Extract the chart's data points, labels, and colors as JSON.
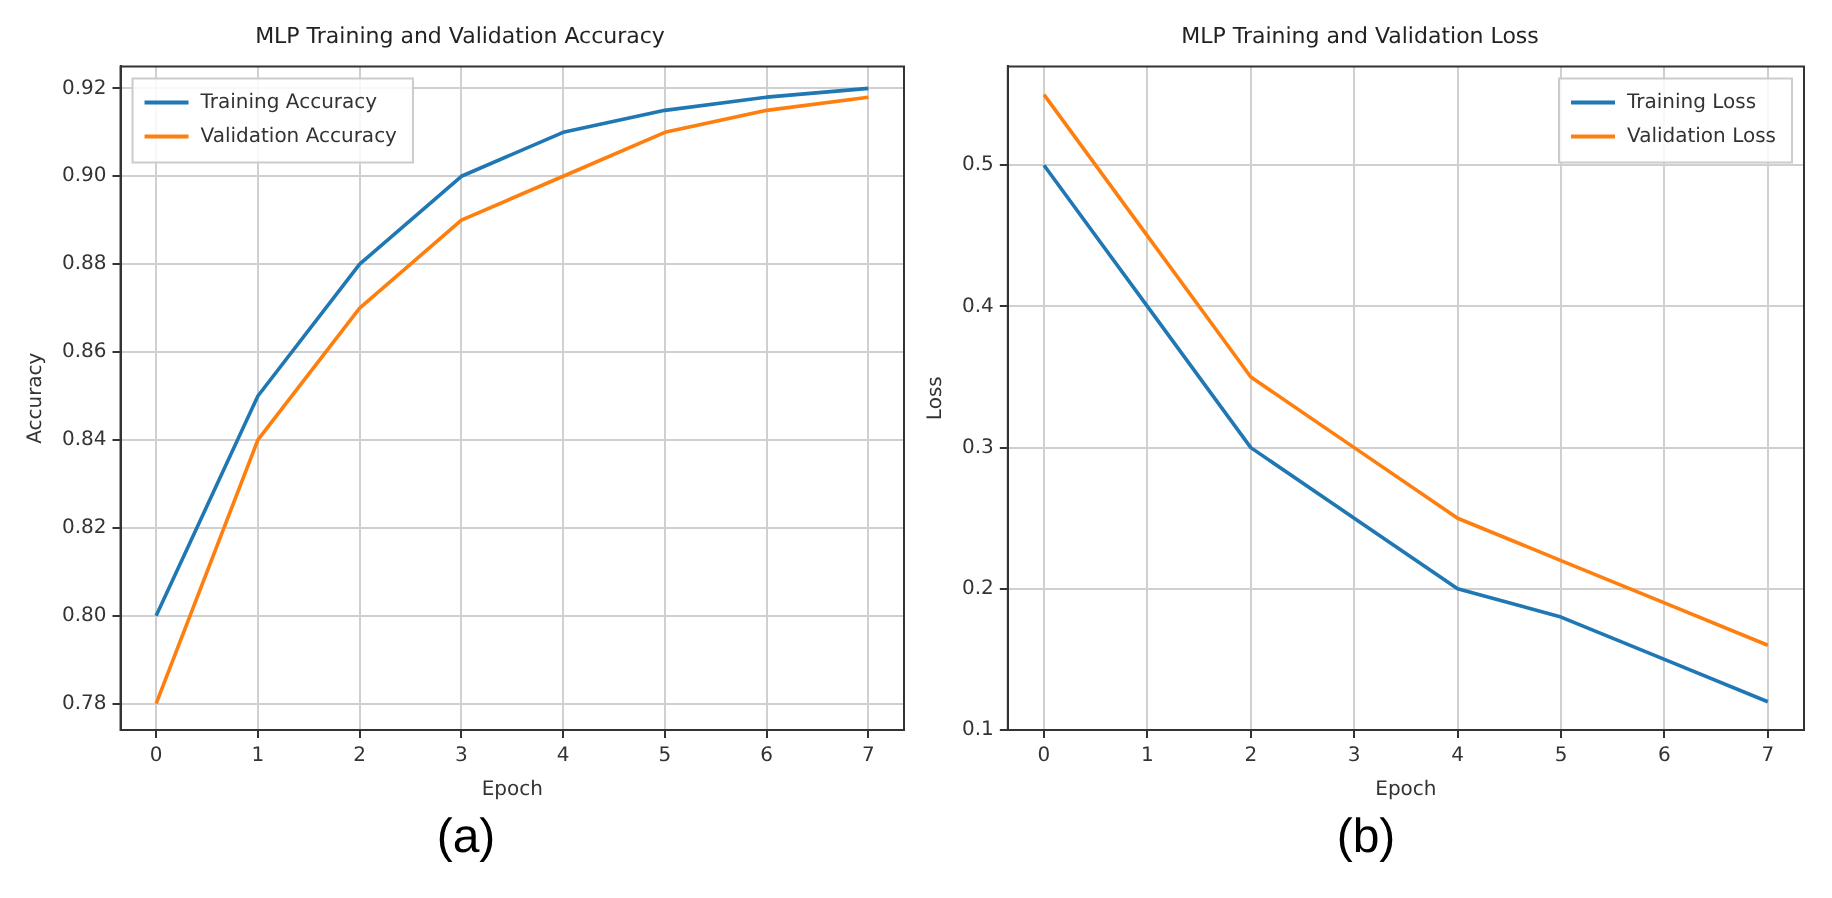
{
  "chart_data": [
    {
      "type": "line",
      "title": "MLP Training and Validation Accuracy",
      "xlabel": "Epoch",
      "ylabel": "Accuracy",
      "x": [
        0,
        1,
        2,
        3,
        4,
        5,
        6,
        7
      ],
      "xlim": [
        -0.35,
        7.35
      ],
      "xticks": [
        0,
        1,
        2,
        3,
        4,
        5,
        6,
        7
      ],
      "ylim": [
        0.774,
        0.925
      ],
      "yticks": [
        0.78,
        {
          "value": 0.8,
          "label": "0.80"
        },
        0.82,
        0.84,
        0.86,
        0.88,
        {
          "value": 0.9,
          "label": "0.90"
        },
        0.92
      ],
      "grid": true,
      "legend": "top left",
      "annotations": [
        "(a)"
      ],
      "series": [
        {
          "name": "Training Accuracy",
          "color": "#1f77b4",
          "values": [
            0.8,
            0.85,
            0.88,
            0.9,
            0.91,
            0.915,
            0.918,
            0.92
          ]
        },
        {
          "name": "Validation Accuracy",
          "color": "#ff7f0e",
          "values": [
            0.78,
            0.84,
            0.87,
            0.89,
            0.9,
            0.91,
            0.915,
            0.918
          ]
        }
      ]
    },
    {
      "type": "line",
      "title": "MLP Training and Validation Loss",
      "xlabel": "Epoch",
      "ylabel": "Loss",
      "x": [
        0,
        1,
        2,
        3,
        4,
        5,
        6,
        7
      ],
      "xlim": [
        -0.35,
        7.35
      ],
      "xticks": [
        0,
        1,
        2,
        3,
        4,
        5,
        6,
        7
      ],
      "ylim": [
        0.1,
        0.57
      ],
      "yticks": [
        0.1,
        0.2,
        0.3,
        0.4,
        0.5
      ],
      "grid": true,
      "legend": "top right",
      "annotations": [
        "(b)"
      ],
      "series": [
        {
          "name": "Training Loss",
          "color": "#1f77b4",
          "values": [
            0.5,
            0.4,
            0.3,
            0.25,
            0.2,
            0.18,
            0.15,
            0.12
          ]
        },
        {
          "name": "Validation Loss",
          "color": "#ff7f0e",
          "values": [
            0.55,
            0.45,
            0.35,
            0.3,
            0.25,
            0.22,
            0.19,
            0.16
          ]
        }
      ]
    }
  ]
}
